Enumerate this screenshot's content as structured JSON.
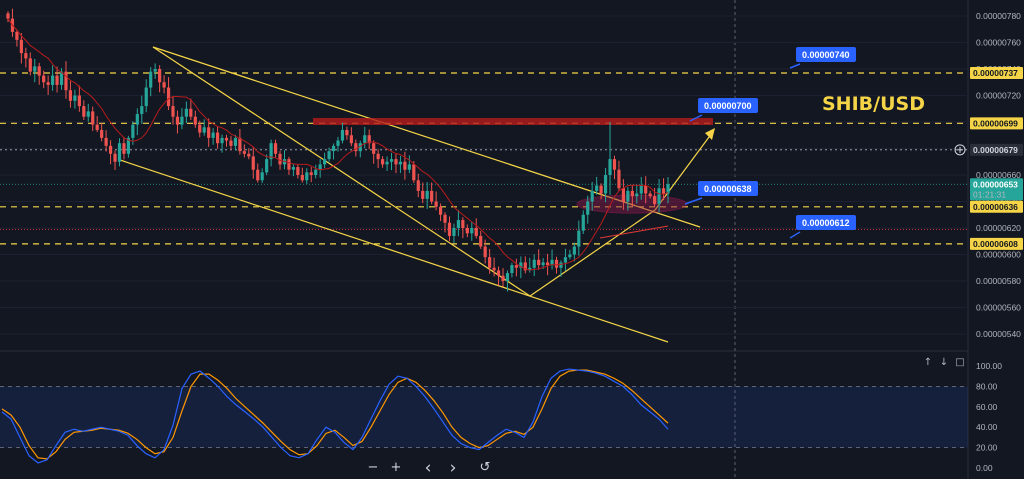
{
  "chart_data": {
    "type": "candlestick",
    "title": "SHIB/USD",
    "price_axis": {
      "ticks": [
        "0.00000780",
        "0.00000760",
        "0.00000740",
        "0.00000720",
        "0.00000700",
        "0.00000680",
        "0.00000660",
        "0.00000640",
        "0.00000620",
        "0.00000600",
        "0.00000580",
        "0.00000560",
        "0.00000540"
      ],
      "range": [
        5.27e-06,
        7.87e-06
      ]
    },
    "levels": [
      {
        "value": "0.00000737",
        "style": "dashed",
        "color": "#f5d547"
      },
      {
        "value": "0.00000699",
        "style": "dashed",
        "color": "#f5d547"
      },
      {
        "value": "0.00000636",
        "style": "dashed",
        "color": "#f5d547"
      },
      {
        "value": "0.00000608",
        "style": "dashed",
        "color": "#f5d547"
      },
      {
        "value": "0.00000679",
        "style": "dotted",
        "color": "#b2b5be"
      },
      {
        "value": "0.00000619",
        "style": "dotted",
        "color": "#f23645"
      }
    ],
    "current_price": {
      "value": "0.00000653",
      "countdown": "01:21:31"
    },
    "callouts": [
      "0.00000740",
      "0.00000700",
      "0.00000638",
      "0.00000612"
    ],
    "closes": [
      7.78e-06,
      7.68e-06,
      7.62e-06,
      7.52e-06,
      7.48e-06,
      7.38e-06,
      7.42e-06,
      7.35e-06,
      7.3e-06,
      7.28e-06,
      7.35e-06,
      7.28e-06,
      7.38e-06,
      7.24e-06,
      7.16e-06,
      7.2e-06,
      7.12e-06,
      7.04e-06,
      7.08e-06,
      6.98e-06,
      6.94e-06,
      6.88e-06,
      6.82e-06,
      6.76e-06,
      6.7e-06,
      6.84e-06,
      6.76e-06,
      6.88e-06,
      6.98e-06,
      7.06e-06,
      7.12e-06,
      7.26e-06,
      7.38e-06,
      7.4e-06,
      7.3e-06,
      7.26e-06,
      7.12e-06,
      7.04e-06,
      6.98e-06,
      7.04e-06,
      7.1e-06,
      7.04e-06,
      6.98e-06,
      6.92e-06,
      6.96e-06,
      6.88e-06,
      6.92e-06,
      6.84e-06,
      6.88e-06,
      6.86e-06,
      6.82e-06,
      6.88e-06,
      6.78e-06,
      6.76e-06,
      6.74e-06,
      6.64e-06,
      6.56e-06,
      6.62e-06,
      6.72e-06,
      6.84e-06,
      6.76e-06,
      6.68e-06,
      6.72e-06,
      6.64e-06,
      6.66e-06,
      6.6e-06,
      6.56e-06,
      6.62e-06,
      6.6e-06,
      6.64e-06,
      6.68e-06,
      6.72e-06,
      6.78e-06,
      6.82e-06,
      6.86e-06,
      6.94e-06,
      6.9e-06,
      6.84e-06,
      6.78e-06,
      6.84e-06,
      6.9e-06,
      6.84e-06,
      6.76e-06,
      6.72e-06,
      6.68e-06,
      6.7e-06,
      6.72e-06,
      6.68e-06,
      6.7e-06,
      6.64e-06,
      6.68e-06,
      6.56e-06,
      6.48e-06,
      6.42e-06,
      6.48e-06,
      6.4e-06,
      6.36e-06,
      6.3e-06,
      6.24e-06,
      6.14e-06,
      6.2e-06,
      6.26e-06,
      6.2e-06,
      6.16e-06,
      6.2e-06,
      6.14e-06,
      6.06e-06,
      5.98e-06,
      5.9e-06,
      5.88e-06,
      5.84e-06,
      5.8e-06,
      5.86e-06,
      5.92e-06,
      5.9e-06,
      5.94e-06,
      5.88e-06,
      5.9e-06,
      5.96e-06,
      5.92e-06,
      5.94e-06,
      5.92e-06,
      5.96e-06,
      5.9e-06,
      5.94e-06,
      5.98e-06,
      6e-06,
      6.06e-06,
      6.18e-06,
      6.3e-06,
      6.4e-06,
      6.48e-06,
      6.52e-06,
      6.46e-06,
      6.6e-06,
      6.72e-06,
      6.64e-06,
      6.5e-06,
      6.4e-06,
      6.48e-06,
      6.44e-06,
      6.46e-06,
      6.52e-06,
      6.46e-06,
      6.44e-06,
      6.38e-06,
      6.5e-06,
      6.46e-06,
      6.53e-06
    ],
    "oscillator": {
      "ticks": [
        "100.00",
        "80.00",
        "60.00",
        "40.00",
        "20.00",
        "0.00"
      ],
      "bands": [
        80,
        20
      ],
      "k": [
        55,
        48,
        30,
        12,
        5,
        8,
        22,
        35,
        38,
        36,
        38,
        40,
        38,
        36,
        32,
        22,
        14,
        10,
        18,
        42,
        78,
        92,
        95,
        88,
        80,
        70,
        62,
        55,
        48,
        40,
        30,
        20,
        12,
        10,
        14,
        28,
        40,
        35,
        25,
        18,
        30,
        48,
        66,
        82,
        90,
        88,
        80,
        70,
        58,
        45,
        32,
        24,
        20,
        18,
        25,
        32,
        38,
        35,
        30,
        45,
        70,
        88,
        95,
        97,
        96,
        95,
        93,
        90,
        85,
        80,
        72,
        62,
        55,
        48,
        38
      ],
      "d": [
        58,
        52,
        40,
        22,
        10,
        9,
        16,
        28,
        35,
        36,
        37,
        39,
        38,
        37,
        34,
        28,
        20,
        14,
        16,
        30,
        56,
        80,
        92,
        92,
        86,
        78,
        68,
        60,
        52,
        44,
        35,
        26,
        18,
        13,
        14,
        22,
        34,
        37,
        30,
        22,
        26,
        40,
        56,
        72,
        84,
        88,
        84,
        76,
        66,
        54,
        40,
        30,
        24,
        20,
        22,
        28,
        34,
        36,
        33,
        40,
        58,
        78,
        90,
        95,
        96,
        96,
        94,
        92,
        88,
        83,
        76,
        68,
        60,
        52,
        44
      ]
    }
  },
  "controls": {
    "zoom_out": "−",
    "zoom_in": "+",
    "prev": "‹",
    "next": "›",
    "reset": "↺"
  },
  "panel_icons": {
    "up": "↑",
    "down": "↓",
    "max": "□"
  },
  "colors": {
    "bg": "#131722",
    "up": "#26a69a",
    "down": "#ef5350",
    "level": "#f5d547",
    "callout": "#2962ff",
    "ma": "#b71c1c",
    "k": "#2962ff",
    "d": "#ff9800"
  }
}
